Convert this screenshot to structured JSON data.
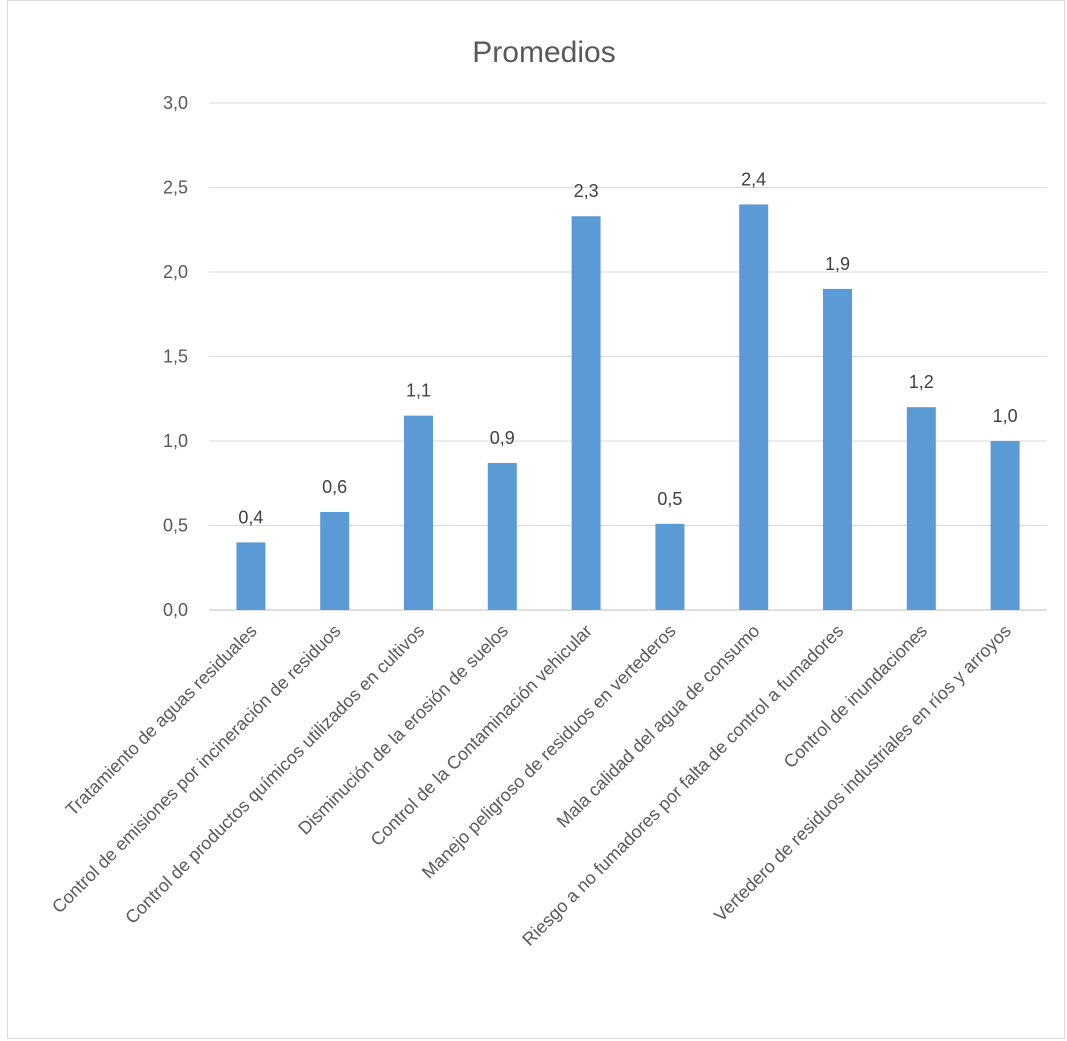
{
  "chart_data": {
    "type": "bar",
    "title": "Promedios",
    "xlabel": "",
    "ylabel": "",
    "ylim": [
      0,
      3
    ],
    "yticks": [
      "0,0",
      "0,5",
      "1,0",
      "1,5",
      "2,0",
      "2,5",
      "3,0"
    ],
    "grid": true,
    "legend": "none",
    "bar_color": "#5b9bd5",
    "categories": [
      "Tratamiento de aguas residuales",
      "Control de emisiones por incineración de residuos",
      "Control de productos químicos utilizados en cultivos",
      "Disminución de la erosión de suelos",
      "Control de la Contaminación vehicular",
      "Manejo peligroso de residuos en vertederos",
      "Mala calidad del agua de consumo",
      "Riesgo a no fumadores por falta de control a fumadores",
      "Control de inundaciones",
      "Vertedero de residuos industriales en ríos y arroyos"
    ],
    "values": [
      0.4,
      0.58,
      1.15,
      0.87,
      2.33,
      0.51,
      2.4,
      1.9,
      1.2,
      1.0
    ],
    "data_labels": [
      "0,4",
      "0,6",
      "1,1",
      "0,9",
      "2,3",
      "0,5",
      "2,4",
      "1,9",
      "1,2",
      "1,0"
    ]
  }
}
